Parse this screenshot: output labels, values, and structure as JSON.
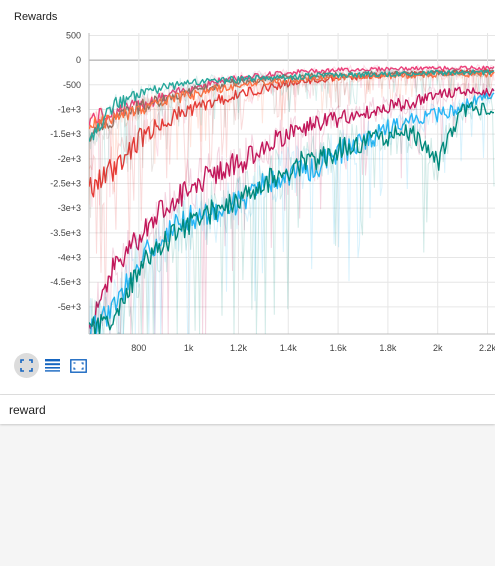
{
  "panel": {
    "title": "Rewards",
    "group_label": "reward",
    "toolbar": [
      {
        "name": "fit-to-data-button",
        "icon": "expand-icon",
        "active": true
      },
      {
        "name": "toggle-log-scale-button",
        "icon": "list-icon",
        "active": false
      },
      {
        "name": "fit-domain-button",
        "icon": "fit-box-icon",
        "active": false
      }
    ]
  },
  "colors": {
    "accent": "#1976d2",
    "toolbar_icon": "#1565c0",
    "grid": "#e6e6e6",
    "zero_line": "#9e9e9e"
  },
  "chart_data": {
    "type": "line",
    "title": "Rewards",
    "xlabel": "",
    "ylabel": "",
    "xlim": [
      600,
      2230
    ],
    "ylim": [
      -5550,
      550
    ],
    "x_ticks": [
      {
        "value": 800,
        "label": "800"
      },
      {
        "value": 1000,
        "label": "1k"
      },
      {
        "value": 1200,
        "label": "1.2k"
      },
      {
        "value": 1400,
        "label": "1.4k"
      },
      {
        "value": 1600,
        "label": "1.6k"
      },
      {
        "value": 1800,
        "label": "1.8k"
      },
      {
        "value": 2000,
        "label": "2k"
      },
      {
        "value": 2200,
        "label": "2.2k"
      }
    ],
    "y_ticks": [
      {
        "value": 500,
        "label": "500"
      },
      {
        "value": 0,
        "label": "0"
      },
      {
        "value": -500,
        "label": "-500"
      },
      {
        "value": -1000,
        "label": "-1e+3"
      },
      {
        "value": -1500,
        "label": "-1.5e+3"
      },
      {
        "value": -2000,
        "label": "-2e+3"
      },
      {
        "value": -2500,
        "label": "-2.5e+3"
      },
      {
        "value": -3000,
        "label": "-3e+3"
      },
      {
        "value": -3500,
        "label": "-3.5e+3"
      },
      {
        "value": -4000,
        "label": "-4e+3"
      },
      {
        "value": -4500,
        "label": "-4.5e+3"
      },
      {
        "value": -5000,
        "label": "-5e+3"
      }
    ],
    "grid": true,
    "series": [
      {
        "color": "#ec407a",
        "x": [
          600,
          700,
          800,
          900,
          1000,
          1100,
          1200,
          1300,
          1400,
          1500,
          1600,
          1700,
          1800,
          1900,
          2000,
          2100,
          2230
        ],
        "y": [
          -1200,
          -1050,
          -900,
          -750,
          -580,
          -450,
          -360,
          -300,
          -250,
          -220,
          -200,
          -185,
          -175,
          -170,
          -165,
          -160,
          -160
        ]
      },
      {
        "color": "#e53935",
        "x": [
          600,
          700,
          800,
          900,
          1000,
          1100,
          1200,
          1300,
          1400,
          1500,
          1600,
          1700,
          1800,
          1900,
          2000,
          2100,
          2230
        ],
        "y": [
          -2600,
          -2200,
          -1600,
          -1250,
          -1000,
          -850,
          -700,
          -570,
          -470,
          -410,
          -370,
          -330,
          -300,
          -280,
          -260,
          -250,
          -240
        ]
      },
      {
        "color": "#8d6e63",
        "x": [
          600,
          700,
          800,
          900,
          1000,
          1100,
          1200,
          1300,
          1400,
          1500,
          1600,
          1700,
          1800,
          1900,
          2000,
          2100,
          2230
        ],
        "y": [
          -1500,
          -1200,
          -950,
          -800,
          -650,
          -520,
          -440,
          -390,
          -350,
          -320,
          -300,
          -285,
          -275,
          -265,
          -260,
          -255,
          -250
        ]
      },
      {
        "color": "#ff7043",
        "x": [
          600,
          700,
          800,
          900,
          1000,
          1100,
          1200,
          1300,
          1400,
          1500,
          1600,
          1700,
          1800,
          1900,
          2000,
          2100,
          2230
        ],
        "y": [
          -1350,
          -1150,
          -1000,
          -850,
          -720,
          -600,
          -500,
          -440,
          -400,
          -370,
          -350,
          -330,
          -320,
          -310,
          -300,
          -290,
          -285
        ]
      },
      {
        "color": "#26a69a",
        "x": [
          600,
          700,
          800,
          900,
          1000,
          1100,
          1200,
          1300,
          1400,
          1500,
          1600,
          1700,
          1800,
          1900,
          2000,
          2100,
          2230
        ],
        "y": [
          -1600,
          -900,
          -700,
          -560,
          -470,
          -420,
          -390,
          -360,
          -340,
          -320,
          -300,
          -290,
          -280,
          -270,
          -260,
          -250,
          -245
        ]
      },
      {
        "color": "#c2185b",
        "x": [
          600,
          700,
          800,
          900,
          1000,
          1100,
          1200,
          1300,
          1400,
          1500,
          1600,
          1700,
          1800,
          1900,
          2000,
          2100,
          2230
        ],
        "y": [
          -5400,
          -4200,
          -3600,
          -3000,
          -2600,
          -2300,
          -2100,
          -1800,
          -1500,
          -1300,
          -1200,
          -1050,
          -950,
          -850,
          -700,
          -620,
          -650
        ]
      },
      {
        "color": "#29b6f6",
        "x": [
          600,
          700,
          800,
          900,
          1000,
          1100,
          1200,
          1300,
          1400,
          1500,
          1600,
          1700,
          1800,
          1900,
          2000,
          2100,
          2230
        ],
        "y": [
          -5500,
          -5000,
          -4100,
          -3500,
          -3200,
          -3100,
          -2900,
          -2500,
          -2300,
          -2200,
          -1900,
          -1650,
          -1400,
          -1250,
          -1100,
          -950,
          -680
        ]
      },
      {
        "color": "#00897b",
        "x": [
          600,
          700,
          800,
          900,
          1000,
          1100,
          1200,
          1300,
          1400,
          1500,
          1600,
          1700,
          1800,
          1900,
          2000,
          2100,
          2230
        ],
        "y": [
          -5500,
          -5200,
          -4200,
          -3700,
          -3300,
          -3050,
          -2800,
          -2500,
          -2200,
          -2000,
          -1800,
          -1650,
          -1550,
          -1500,
          -2100,
          -1000,
          -950
        ]
      }
    ]
  }
}
